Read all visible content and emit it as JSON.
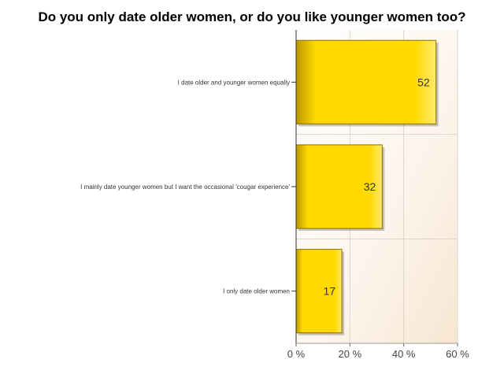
{
  "chart_data": {
    "type": "bar",
    "orientation": "horizontal",
    "title": "Do you only date older women, or do you like younger women too?",
    "categories": [
      "I date older and younger women equally",
      "I mainly date younger women but I want the occasional 'cougar  experience'",
      "I only date older women"
    ],
    "values": [
      52,
      32,
      17
    ],
    "x_ticks": [
      "0 %",
      "20 %",
      "40 %",
      "60 %"
    ],
    "xlim": [
      0,
      60
    ],
    "grid": true,
    "bar_color": "#ffd700",
    "bar_dark_color": "#c8a000"
  }
}
